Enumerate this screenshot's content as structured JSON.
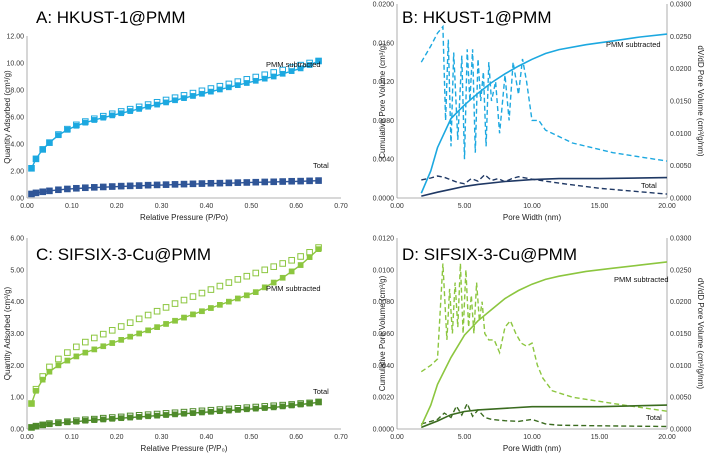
{
  "figure_title": "Four-panel adsorption isotherm and pore size distribution figure",
  "chart_data": [
    {
      "id": "A",
      "type": "scatter",
      "title": "A: HKUST-1@PMM",
      "xlabel": "Relative Pressure (P/Po)",
      "ylabel": "Quantity Adsorbed (cm³/g)",
      "xlim": [
        0,
        0.7
      ],
      "ylim": [
        0,
        12
      ],
      "xticks": [
        "0.00",
        "0.10",
        "0.20",
        "0.30",
        "0.40",
        "0.50",
        "0.60",
        "0.70"
      ],
      "yticks": [
        "0.00",
        "2.00",
        "4.00",
        "6.00",
        "8.00",
        "10.00",
        "12.00"
      ],
      "series": [
        {
          "name": "PMM subtracted",
          "color": "#1ca8e0",
          "x": [
            0.01,
            0.02,
            0.035,
            0.05,
            0.07,
            0.09,
            0.11,
            0.13,
            0.15,
            0.17,
            0.19,
            0.21,
            0.23,
            0.25,
            0.27,
            0.29,
            0.31,
            0.33,
            0.35,
            0.37,
            0.39,
            0.41,
            0.43,
            0.45,
            0.47,
            0.49,
            0.51,
            0.53,
            0.55,
            0.57,
            0.59,
            0.61,
            0.63,
            0.65
          ],
          "adsorption": [
            2.2,
            2.9,
            3.6,
            4.1,
            4.65,
            5.05,
            5.35,
            5.58,
            5.78,
            5.95,
            6.12,
            6.28,
            6.44,
            6.6,
            6.76,
            6.92,
            7.08,
            7.24,
            7.4,
            7.56,
            7.72,
            7.88,
            8.04,
            8.2,
            8.36,
            8.52,
            8.68,
            8.84,
            9.0,
            9.2,
            9.4,
            9.6,
            9.85,
            10.15
          ],
          "desorption": [
            2.2,
            2.9,
            3.6,
            4.1,
            4.7,
            5.1,
            5.42,
            5.66,
            5.87,
            6.06,
            6.24,
            6.41,
            6.58,
            6.75,
            6.92,
            7.09,
            7.26,
            7.43,
            7.6,
            7.77,
            7.94,
            8.11,
            8.28,
            8.45,
            8.62,
            8.79,
            8.96,
            9.13,
            9.3,
            9.48,
            9.66,
            9.84,
            10.0,
            10.15
          ]
        },
        {
          "name": "Total",
          "color": "#2f5597",
          "x": [
            0.01,
            0.02,
            0.035,
            0.05,
            0.07,
            0.09,
            0.11,
            0.13,
            0.15,
            0.17,
            0.19,
            0.21,
            0.23,
            0.25,
            0.27,
            0.29,
            0.31,
            0.33,
            0.35,
            0.37,
            0.39,
            0.41,
            0.43,
            0.45,
            0.47,
            0.49,
            0.51,
            0.53,
            0.55,
            0.57,
            0.59,
            0.61,
            0.63,
            0.65
          ],
          "adsorption": [
            0.3,
            0.38,
            0.46,
            0.53,
            0.6,
            0.66,
            0.7,
            0.74,
            0.77,
            0.8,
            0.83,
            0.86,
            0.88,
            0.9,
            0.93,
            0.95,
            0.97,
            0.99,
            1.01,
            1.03,
            1.05,
            1.07,
            1.09,
            1.1,
            1.12,
            1.14,
            1.16,
            1.17,
            1.19,
            1.21,
            1.22,
            1.24,
            1.26,
            1.28
          ],
          "desorption": [
            0.3,
            0.38,
            0.46,
            0.53,
            0.61,
            0.67,
            0.72,
            0.76,
            0.79,
            0.82,
            0.85,
            0.88,
            0.9,
            0.92,
            0.95,
            0.97,
            0.99,
            1.01,
            1.03,
            1.05,
            1.07,
            1.09,
            1.1,
            1.12,
            1.14,
            1.15,
            1.17,
            1.19,
            1.2,
            1.22,
            1.24,
            1.25,
            1.27,
            1.29
          ]
        }
      ],
      "annotations": [
        "PMM subtracted",
        "Total"
      ]
    },
    {
      "id": "B",
      "type": "line",
      "title": "B: HKUST-1@PMM",
      "xlabel": "Pore Width (nm)",
      "ylabel": "Cumulative Pore Volume (cm³/g)",
      "y2label": "dV/dD Pore Volume (cm³/g/nm)",
      "xlim": [
        0,
        20
      ],
      "ylim": [
        0,
        0.02
      ],
      "y2lim": [
        0,
        0.03
      ],
      "xticks": [
        "0.00",
        "5.00",
        "10.00",
        "15.00",
        "20.00"
      ],
      "yticks": [
        "0.0000",
        "0.0040",
        "0.0080",
        "0.0120",
        "0.0160",
        "0.0200"
      ],
      "y2ticks": [
        "0.0000",
        "0.0050",
        "0.0100",
        "0.0150",
        "0.0200",
        "0.0250",
        "0.0300"
      ],
      "cumulative_pmm": {
        "x": [
          1.8,
          2.5,
          3.0,
          4.0,
          5.0,
          6.0,
          7.0,
          8.0,
          9.0,
          10.0,
          11.0,
          12.0,
          14.0,
          16.0,
          18.0,
          20.0
        ],
        "y": [
          0.0005,
          0.0028,
          0.0052,
          0.0082,
          0.0096,
          0.0108,
          0.0119,
          0.0128,
          0.0136,
          0.0143,
          0.0149,
          0.0153,
          0.0158,
          0.0162,
          0.0166,
          0.0169
        ]
      },
      "cumulative_total": {
        "x": [
          1.8,
          3.0,
          4.0,
          5.0,
          6.0,
          8.0,
          10.0,
          12.0,
          15.0,
          20.0
        ],
        "y": [
          0.0002,
          0.0006,
          0.0009,
          0.0012,
          0.0014,
          0.0017,
          0.0019,
          0.002,
          0.002,
          0.0021
        ]
      },
      "dvdd_pmm": {
        "x": [
          1.8,
          2.5,
          3.0,
          3.4,
          3.6,
          3.8,
          4.0,
          4.2,
          4.5,
          4.8,
          5.0,
          5.2,
          5.4,
          5.6,
          5.8,
          6.0,
          6.2,
          6.4,
          6.6,
          6.8,
          7.0,
          7.3,
          7.6,
          8.0,
          8.3,
          8.6,
          9.0,
          9.3,
          9.6,
          10.0,
          10.5,
          11.0,
          13.0,
          16.0,
          20.0
        ],
        "y": [
          0.021,
          0.0235,
          0.0255,
          0.0265,
          0.012,
          0.0245,
          0.008,
          0.0225,
          0.009,
          0.022,
          0.006,
          0.023,
          0.015,
          0.023,
          0.007,
          0.0215,
          0.015,
          0.0195,
          0.008,
          0.021,
          0.015,
          0.018,
          0.01,
          0.019,
          0.012,
          0.021,
          0.016,
          0.0215,
          0.018,
          0.012,
          0.012,
          0.0105,
          0.0085,
          0.007,
          0.0057
        ]
      },
      "dvdd_total": {
        "x": [
          1.8,
          2.5,
          3.0,
          3.5,
          4.0,
          4.5,
          5.0,
          5.5,
          6.0,
          6.5,
          7.0,
          7.5,
          8.0,
          8.5,
          9.0,
          10.0,
          12.0,
          15.0,
          20.0
        ],
        "y": [
          0.0028,
          0.0031,
          0.0034,
          0.0032,
          0.0028,
          0.0024,
          0.0022,
          0.003,
          0.0026,
          0.0036,
          0.0027,
          0.003,
          0.0025,
          0.003,
          0.0033,
          0.0029,
          0.0023,
          0.0015,
          0.0006
        ]
      },
      "annotations": [
        "PMM subtracted",
        "Total"
      ]
    },
    {
      "id": "C",
      "type": "scatter",
      "title": "C: SIFSIX-3-Cu@PMM",
      "xlabel": "Relative Pressure (P/P₀)",
      "ylabel": "Quantity Adsorbed (cm³/g)",
      "xlim": [
        0,
        0.7
      ],
      "ylim": [
        0,
        6
      ],
      "xticks": [
        "0.00",
        "0.10",
        "0.20",
        "0.30",
        "0.40",
        "0.50",
        "0.60",
        "0.70"
      ],
      "yticks": [
        "0.00",
        "1.00",
        "2.00",
        "3.00",
        "4.00",
        "5.00",
        "6.00"
      ],
      "series": [
        {
          "name": "PMM subtracted",
          "color": "#8cc63f",
          "x": [
            0.01,
            0.02,
            0.035,
            0.05,
            0.07,
            0.09,
            0.11,
            0.13,
            0.15,
            0.17,
            0.19,
            0.21,
            0.23,
            0.25,
            0.27,
            0.29,
            0.31,
            0.33,
            0.35,
            0.37,
            0.39,
            0.41,
            0.43,
            0.45,
            0.47,
            0.49,
            0.51,
            0.53,
            0.55,
            0.57,
            0.59,
            0.61,
            0.63,
            0.65
          ],
          "adsorption": [
            0.8,
            1.2,
            1.55,
            1.8,
            2.0,
            2.15,
            2.28,
            2.4,
            2.5,
            2.6,
            2.7,
            2.8,
            2.9,
            3.0,
            3.1,
            3.2,
            3.3,
            3.4,
            3.5,
            3.6,
            3.7,
            3.8,
            3.9,
            4.0,
            4.1,
            4.2,
            4.3,
            4.45,
            4.6,
            4.75,
            4.95,
            5.15,
            5.4,
            5.65
          ],
          "desorption": [
            0.8,
            1.25,
            1.65,
            1.95,
            2.2,
            2.4,
            2.58,
            2.73,
            2.86,
            2.98,
            3.1,
            3.22,
            3.34,
            3.46,
            3.58,
            3.7,
            3.82,
            3.94,
            4.05,
            4.16,
            4.27,
            4.38,
            4.49,
            4.6,
            4.7,
            4.8,
            4.9,
            5.0,
            5.1,
            5.2,
            5.3,
            5.42,
            5.55,
            5.7
          ]
        },
        {
          "name": "Total",
          "color": "#4e8a2a",
          "x": [
            0.01,
            0.02,
            0.035,
            0.05,
            0.07,
            0.09,
            0.11,
            0.13,
            0.15,
            0.17,
            0.19,
            0.21,
            0.23,
            0.25,
            0.27,
            0.29,
            0.31,
            0.33,
            0.35,
            0.37,
            0.39,
            0.41,
            0.43,
            0.45,
            0.47,
            0.49,
            0.51,
            0.53,
            0.55,
            0.57,
            0.59,
            0.61,
            0.63,
            0.65
          ],
          "adsorption": [
            0.05,
            0.08,
            0.12,
            0.15,
            0.18,
            0.21,
            0.23,
            0.26,
            0.28,
            0.3,
            0.32,
            0.34,
            0.36,
            0.38,
            0.4,
            0.42,
            0.44,
            0.46,
            0.48,
            0.5,
            0.52,
            0.54,
            0.56,
            0.58,
            0.6,
            0.62,
            0.64,
            0.66,
            0.68,
            0.71,
            0.74,
            0.77,
            0.8,
            0.84
          ],
          "desorption": [
            0.05,
            0.09,
            0.13,
            0.17,
            0.2,
            0.23,
            0.26,
            0.29,
            0.31,
            0.34,
            0.36,
            0.38,
            0.41,
            0.43,
            0.45,
            0.47,
            0.49,
            0.51,
            0.53,
            0.55,
            0.57,
            0.59,
            0.61,
            0.63,
            0.65,
            0.67,
            0.69,
            0.71,
            0.73,
            0.75,
            0.77,
            0.8,
            0.82,
            0.85
          ]
        }
      ],
      "annotations": [
        "PMM subtracted",
        "Total"
      ]
    },
    {
      "id": "D",
      "type": "line",
      "title": "D: SIFSIX-3-Cu@PMM",
      "xlabel": "Pore Width (nm)",
      "ylabel": "Cumulative Pore Volume (cm³/g)",
      "y2label": "dV/dD Pore Volume (cm³/g/nm)",
      "xlim": [
        0,
        20
      ],
      "ylim": [
        0,
        0.012
      ],
      "y2lim": [
        0,
        0.03
      ],
      "xticks": [
        "0.00",
        "5.00",
        "10.00",
        "15.00",
        "20.00"
      ],
      "yticks": [
        "0.0000",
        "0.0020",
        "0.0040",
        "0.0060",
        "0.0080",
        "0.0100",
        "0.0120"
      ],
      "y2ticks": [
        "0.0000",
        "0.0050",
        "0.0100",
        "0.0150",
        "0.0200",
        "0.0250",
        "0.0300"
      ],
      "cumulative_pmm": {
        "x": [
          1.8,
          2.5,
          3.0,
          4.0,
          5.0,
          6.0,
          7.0,
          8.0,
          9.0,
          10.0,
          11.0,
          12.0,
          14.0,
          16.0,
          18.0,
          20.0
        ],
        "y": [
          0.0002,
          0.0015,
          0.0028,
          0.0045,
          0.0059,
          0.0068,
          0.0075,
          0.0082,
          0.0087,
          0.0091,
          0.0094,
          0.0096,
          0.0099,
          0.0101,
          0.0103,
          0.0105
        ]
      },
      "cumulative_total": {
        "x": [
          1.8,
          3.0,
          4.0,
          5.0,
          6.0,
          8.0,
          10.0,
          12.0,
          15.0,
          20.0
        ],
        "y": [
          0.0001,
          0.0005,
          0.0009,
          0.0011,
          0.0012,
          0.0013,
          0.0014,
          0.0014,
          0.0014,
          0.0015
        ]
      },
      "dvdd_pmm": {
        "x": [
          1.8,
          2.5,
          3.0,
          3.4,
          3.7,
          3.9,
          4.1,
          4.3,
          4.5,
          4.7,
          4.9,
          5.1,
          5.3,
          5.5,
          5.7,
          5.9,
          6.1,
          6.3,
          6.5,
          6.8,
          7.2,
          7.6,
          8.0,
          8.4,
          8.8,
          9.2,
          9.6,
          10.0,
          10.4,
          10.8,
          11.5,
          13.0,
          16.0,
          20.0
        ],
        "y": [
          0.009,
          0.01,
          0.011,
          0.026,
          0.014,
          0.022,
          0.015,
          0.023,
          0.016,
          0.026,
          0.015,
          0.025,
          0.016,
          0.021,
          0.015,
          0.023,
          0.017,
          0.02,
          0.015,
          0.014,
          0.014,
          0.012,
          0.016,
          0.017,
          0.015,
          0.0135,
          0.013,
          0.0135,
          0.01,
          0.008,
          0.006,
          0.005,
          0.004,
          0.0028
        ]
      },
      "dvdd_total": {
        "x": [
          1.8,
          2.5,
          3.0,
          3.5,
          4.0,
          4.4,
          4.8,
          5.2,
          5.6,
          6.0,
          6.5,
          7.0,
          8.0,
          9.0,
          10.0,
          11.0,
          12.0,
          15.0,
          20.0
        ],
        "y": [
          0.0008,
          0.0012,
          0.0015,
          0.0025,
          0.0018,
          0.0036,
          0.0022,
          0.004,
          0.002,
          0.003,
          0.0018,
          0.0015,
          0.0013,
          0.0012,
          0.0015,
          0.0008,
          0.0006,
          0.0005,
          0.0004
        ]
      },
      "annotations": [
        "PMM subtracted",
        "Total"
      ]
    }
  ]
}
